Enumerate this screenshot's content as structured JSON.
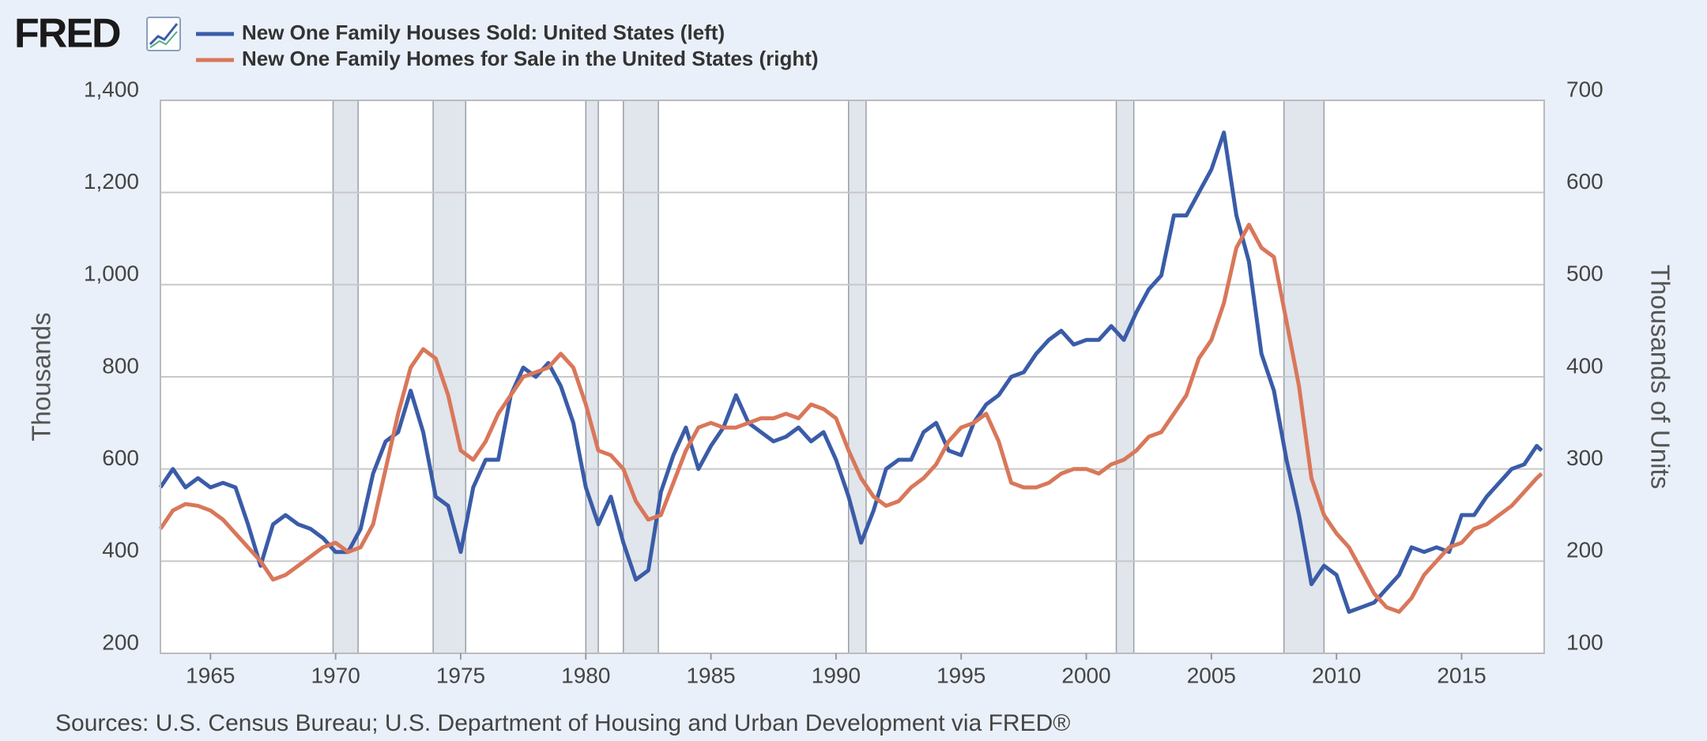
{
  "chart_data": {
    "type": "line",
    "logo": "FRED",
    "source": "Sources: U.S. Census Bureau; U.S. Department of Housing and Urban Development via FRED®",
    "ylabel": "Thousands",
    "y2label": "Thousands of Units",
    "x": [
      1963,
      1963.5,
      1964,
      1964.5,
      1965,
      1965.5,
      1966,
      1966.5,
      1967,
      1967.5,
      1968,
      1968.5,
      1969,
      1969.5,
      1970,
      1970.5,
      1971,
      1971.5,
      1972,
      1972.5,
      1973,
      1973.5,
      1974,
      1974.5,
      1975,
      1975.5,
      1976,
      1976.5,
      1977,
      1977.5,
      1978,
      1978.5,
      1979,
      1979.5,
      1980,
      1980.5,
      1981,
      1981.5,
      1982,
      1982.5,
      1983,
      1983.5,
      1984,
      1984.5,
      1985,
      1985.5,
      1986,
      1986.5,
      1987,
      1987.5,
      1988,
      1988.5,
      1989,
      1989.5,
      1990,
      1990.5,
      1991,
      1991.5,
      1992,
      1992.5,
      1993,
      1993.5,
      1994,
      1994.5,
      1995,
      1995.5,
      1996,
      1996.5,
      1997,
      1997.5,
      1998,
      1998.5,
      1999,
      1999.5,
      2000,
      2000.5,
      2001,
      2001.5,
      2002,
      2002.5,
      2003,
      2003.5,
      2004,
      2004.5,
      2005,
      2005.5,
      2006,
      2006.5,
      2007,
      2007.5,
      2008,
      2008.5,
      2009,
      2009.5,
      2010,
      2010.5,
      2011,
      2011.5,
      2012,
      2012.5,
      2013,
      2013.5,
      2014,
      2014.5,
      2015,
      2015.5,
      2016,
      2016.5,
      2017,
      2017.5,
      2018,
      2018.2
    ],
    "series": [
      {
        "name": "New One Family Houses Sold: United States (left)",
        "color": "#3a5ca8",
        "axis": "y",
        "values": [
          560,
          600,
          560,
          580,
          560,
          570,
          560,
          480,
          390,
          480,
          500,
          480,
          470,
          450,
          420,
          420,
          470,
          590,
          660,
          680,
          770,
          680,
          540,
          520,
          420,
          560,
          620,
          620,
          760,
          820,
          800,
          830,
          780,
          700,
          560,
          480,
          540,
          440,
          360,
          380,
          550,
          630,
          690,
          600,
          650,
          690,
          760,
          700,
          680,
          660,
          670,
          690,
          660,
          680,
          620,
          540,
          440,
          510,
          600,
          620,
          620,
          680,
          700,
          640,
          630,
          700,
          740,
          760,
          800,
          810,
          850,
          880,
          900,
          870,
          880,
          880,
          910,
          880,
          940,
          990,
          1020,
          1150,
          1150,
          1200,
          1250,
          1330,
          1150,
          1050,
          850,
          770,
          620,
          500,
          350,
          390,
          370,
          290,
          300,
          310,
          340,
          370,
          430,
          420,
          430,
          420,
          500,
          500,
          540,
          570,
          600,
          610,
          650,
          640
        ]
      },
      {
        "name": "New One Family Homes for Sale in the United States (right)",
        "color": "#d9775a",
        "axis": "y2",
        "values": [
          235,
          255,
          262,
          260,
          255,
          245,
          230,
          215,
          200,
          180,
          185,
          195,
          205,
          215,
          220,
          210,
          215,
          240,
          300,
          360,
          410,
          430,
          420,
          380,
          320,
          310,
          330,
          360,
          380,
          400,
          405,
          410,
          425,
          410,
          370,
          320,
          315,
          300,
          265,
          245,
          250,
          285,
          320,
          345,
          350,
          345,
          345,
          350,
          355,
          355,
          360,
          355,
          370,
          365,
          355,
          320,
          290,
          270,
          260,
          265,
          280,
          290,
          305,
          330,
          345,
          350,
          360,
          330,
          285,
          280,
          280,
          285,
          295,
          300,
          300,
          295,
          305,
          310,
          320,
          335,
          340,
          360,
          380,
          420,
          440,
          480,
          540,
          565,
          540,
          530,
          460,
          390,
          290,
          250,
          230,
          215,
          190,
          165,
          150,
          145,
          160,
          185,
          200,
          215,
          220,
          235,
          240,
          250,
          260,
          275,
          290,
          295
        ]
      }
    ],
    "recessions": [
      [
        1969.9,
        1970.9
      ],
      [
        1973.9,
        1975.2
      ],
      [
        1980.0,
        1980.5
      ],
      [
        1981.5,
        1982.9
      ],
      [
        1990.5,
        1991.2
      ],
      [
        2001.2,
        2001.9
      ],
      [
        2007.9,
        2009.5
      ]
    ],
    "xlim": [
      1963,
      2018.3
    ],
    "xticks": [
      1965,
      1970,
      1975,
      1980,
      1985,
      1990,
      1995,
      2000,
      2005,
      2010,
      2015
    ],
    "ylim": [
      200,
      1400
    ],
    "yticks": [
      200,
      400,
      600,
      800,
      {
        "value": 1000,
        "label": "1,000"
      },
      {
        "value": 1200,
        "label": "1,200"
      },
      {
        "value": 1400,
        "label": "1,400"
      }
    ],
    "y2lim": [
      100,
      700
    ],
    "y2ticks": [
      100,
      200,
      300,
      400,
      500,
      600,
      700
    ],
    "grid": true,
    "recession_color": "#e1e5ec"
  }
}
